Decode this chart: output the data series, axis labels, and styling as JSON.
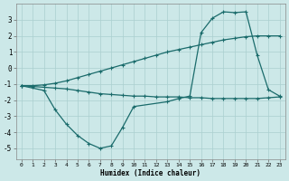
{
  "xlabel": "Humidex (Indice chaleur)",
  "bg_color": "#cce8e8",
  "grid_color": "#aacfcf",
  "line_color": "#1a6b6b",
  "xlim": [
    -0.5,
    23.5
  ],
  "ylim": [
    -5.7,
    4.0
  ],
  "xticks": [
    0,
    1,
    2,
    3,
    4,
    5,
    6,
    7,
    8,
    9,
    10,
    11,
    12,
    13,
    14,
    15,
    16,
    17,
    18,
    19,
    20,
    21,
    22,
    23
  ],
  "yticks": [
    -5,
    -4,
    -3,
    -2,
    -1,
    0,
    1,
    2,
    3
  ],
  "line1_x": [
    0,
    1,
    2,
    3,
    4,
    5,
    6,
    7,
    8,
    9,
    10,
    11,
    12,
    13,
    14,
    15,
    16,
    17,
    18,
    19,
    20,
    21,
    22,
    23
  ],
  "line1_y": [
    -1.1,
    -1.15,
    -1.2,
    -1.25,
    -1.3,
    -1.4,
    -1.5,
    -1.6,
    -1.65,
    -1.7,
    -1.75,
    -1.75,
    -1.8,
    -1.8,
    -1.8,
    -1.85,
    -1.85,
    -1.9,
    -1.9,
    -1.9,
    -1.9,
    -1.9,
    -1.85,
    -1.8
  ],
  "line2_x": [
    0,
    1,
    2,
    3,
    4,
    5,
    6,
    7,
    8,
    9,
    10,
    11,
    12,
    13,
    14,
    15,
    16,
    17,
    18,
    19,
    20,
    21,
    22,
    23
  ],
  "line2_y": [
    -1.1,
    -1.1,
    -1.05,
    -0.95,
    -0.8,
    -0.6,
    -0.4,
    -0.2,
    0.0,
    0.2,
    0.4,
    0.6,
    0.8,
    1.0,
    1.15,
    1.3,
    1.45,
    1.6,
    1.75,
    1.85,
    1.95,
    2.0,
    2.0,
    2.0
  ],
  "line3_x": [
    0,
    2,
    3,
    4,
    5,
    6,
    7,
    8,
    9,
    10,
    13,
    14,
    15,
    16,
    17,
    18,
    19,
    20,
    21,
    22,
    23
  ],
  "line3_y": [
    -1.1,
    -1.4,
    -2.6,
    -3.5,
    -4.2,
    -4.7,
    -5.0,
    -4.85,
    -3.7,
    -2.4,
    -2.1,
    -1.9,
    -1.75,
    2.2,
    3.1,
    3.5,
    3.45,
    3.5,
    0.8,
    -1.35,
    -1.75
  ]
}
